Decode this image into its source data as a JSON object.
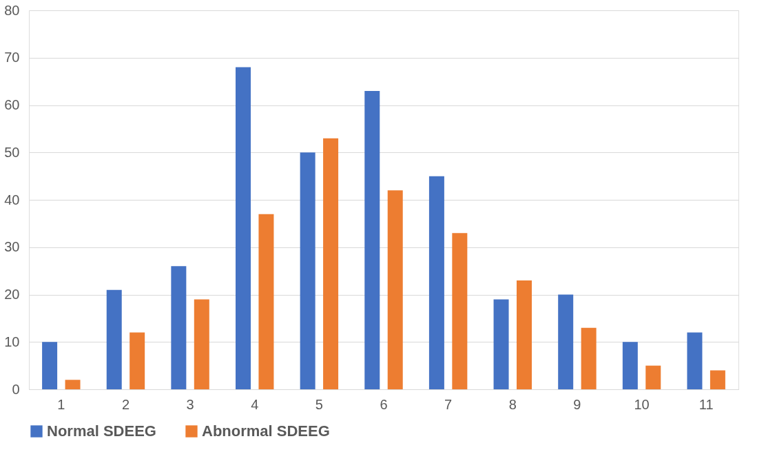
{
  "chart_data": {
    "type": "bar",
    "categories": [
      "1",
      "2",
      "3",
      "4",
      "5",
      "6",
      "7",
      "8",
      "9",
      "10",
      "11"
    ],
    "series": [
      {
        "name": "Normal SDEEG",
        "color": "#4472c4",
        "values": [
          10,
          21,
          26,
          68,
          50,
          63,
          45,
          19,
          20,
          10,
          12
        ]
      },
      {
        "name": "Abnormal SDEEG",
        "color": "#ed7d31",
        "values": [
          2,
          12,
          19,
          37,
          53,
          42,
          33,
          23,
          13,
          5,
          4
        ]
      }
    ],
    "ylim": [
      0,
      80
    ],
    "yticks": [
      0,
      10,
      20,
      30,
      40,
      50,
      60,
      70,
      80
    ],
    "grid": "y",
    "legend": "bottom"
  }
}
